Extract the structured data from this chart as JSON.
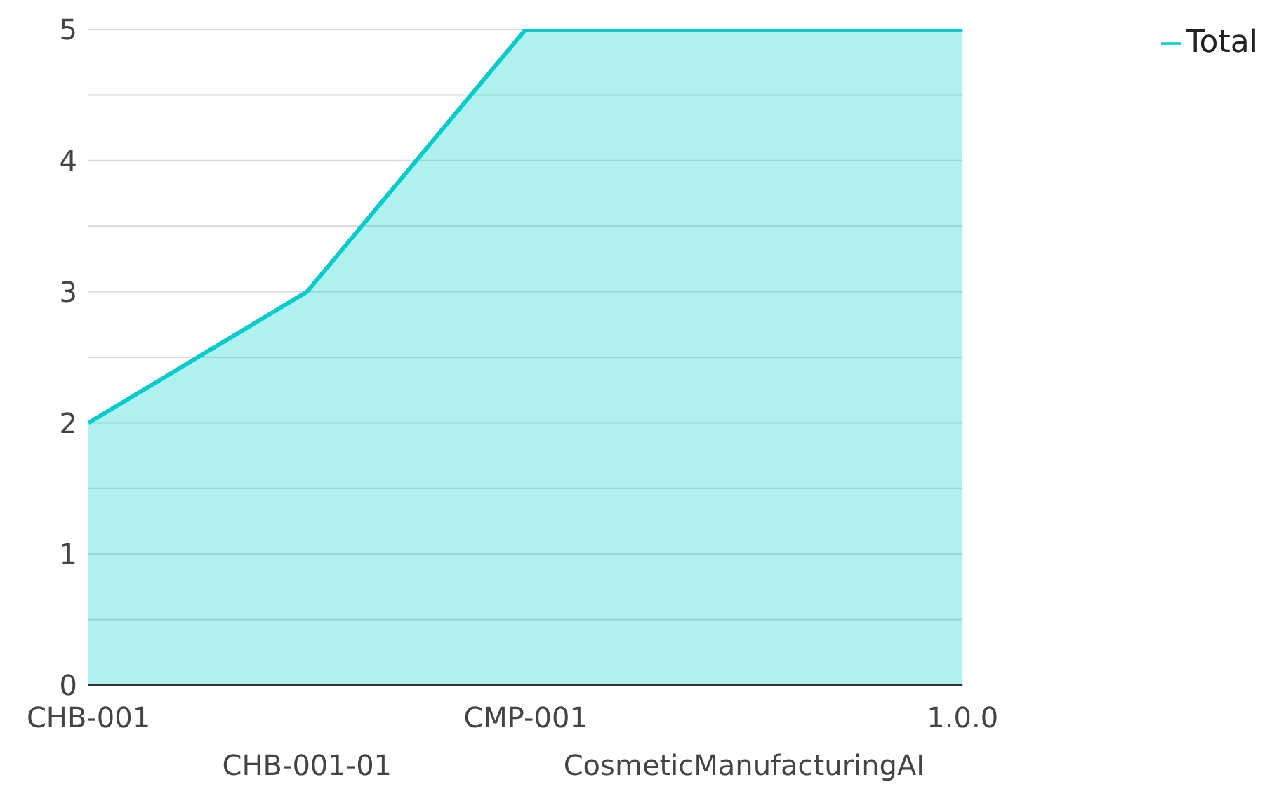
{
  "chart_data": {
    "type": "area",
    "categories": [
      "CHB-001",
      "CHB-001-01",
      "CMP-001",
      "CosmeticManufacturingAI",
      "1.0.0"
    ],
    "series": [
      {
        "name": "Total",
        "color": "#00cccc",
        "values": [
          2,
          3,
          5,
          5,
          5
        ]
      }
    ],
    "ylim": [
      0,
      5
    ],
    "yticks": [
      0,
      {
        "value": 0.5,
        "label": null
      },
      1,
      {
        "value": 1.5,
        "label": null
      },
      2,
      {
        "value": 2.5,
        "label": null
      },
      3,
      {
        "value": 3.5,
        "label": null
      },
      4,
      {
        "value": 4.5,
        "label": null
      },
      5
    ],
    "grid": "y",
    "legend": "top right"
  }
}
